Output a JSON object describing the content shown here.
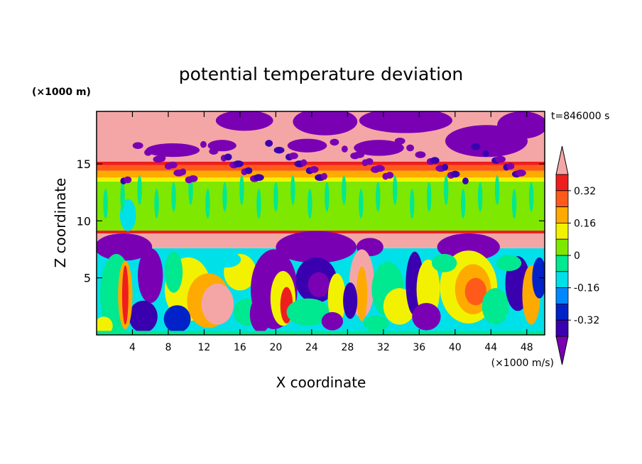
{
  "chart_data": {
    "type": "heatmap",
    "title": "potential temperature deviation",
    "xlabel": "X coordinate",
    "ylabel": "Z coordinate",
    "x_unit": "(×1000 m/s)",
    "y_unit": "(×1000 m)",
    "time_label": "t=846000 s",
    "xlim": [
      0,
      50
    ],
    "ylim": [
      0,
      19.6
    ],
    "x_ticks": [
      4,
      8,
      12,
      16,
      20,
      24,
      28,
      32,
      36,
      40,
      44,
      48
    ],
    "y_ticks": [
      5,
      10,
      15
    ],
    "colorbar": {
      "labels": [
        "0.32",
        "0.16",
        "0",
        "-0.16",
        "-0.32"
      ],
      "label_values": [
        0.32,
        0.16,
        0,
        -0.16,
        -0.32
      ],
      "levels": [
        -0.4,
        -0.32,
        -0.24,
        -0.16,
        -0.08,
        0,
        0.08,
        0.16,
        0.24,
        0.32,
        0.4
      ],
      "colors": [
        "#7a00b4",
        "#3a00b0",
        "#0022c8",
        "#0088ff",
        "#00e0e8",
        "#00e890",
        "#7ee800",
        "#f2f200",
        "#ffaa00",
        "#ff5a1a",
        "#ee1e1e",
        "#f4a6a6"
      ]
    },
    "palette": {
      "purple": "#7a00b4",
      "navy": "#3a00b0",
      "blue": "#0022c8",
      "azure": "#0088ff",
      "cyan": "#00e0e8",
      "green": "#00e890",
      "lime": "#7ee800",
      "yellow": "#f2f200",
      "orange": "#ffaa00",
      "orangered": "#ff5a1a",
      "red": "#ee1e1e",
      "pink": "#f4a6a6"
    }
  }
}
